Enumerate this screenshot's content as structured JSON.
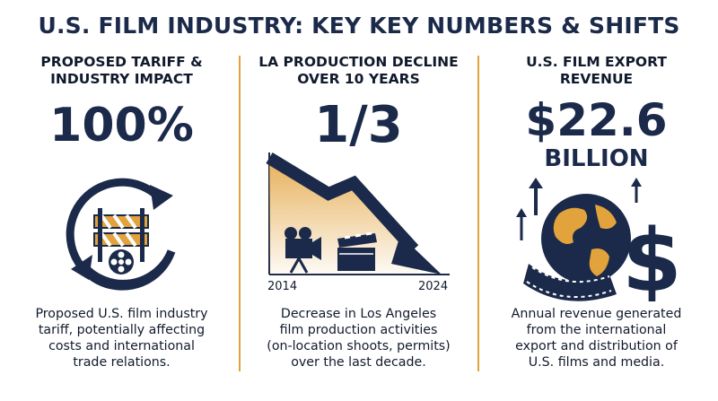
{
  "title": "U.S. FILM INDUSTRY: KEY KEY NUMBERS & SHIFTS",
  "colors": {
    "navy": "#1b2a4a",
    "gold": "#e2a23c",
    "white": "#ffffff"
  },
  "panels": [
    {
      "heading_line1": "PROPOSED TARIFF &",
      "heading_line2": "INDUSTRY IMPACT",
      "big_value": "100%",
      "icon": "barrier-film-reel-cycle-icon",
      "desc_lines": [
        "Proposed U.S. film industry",
        "tariff, potentially affecting",
        "costs and international",
        "trade relations."
      ]
    },
    {
      "heading_line1": "LA PRODUCTION DECLINE",
      "heading_line2": "OVER 10 YEARS",
      "big_value": "1/3",
      "icon": "declining-arrow-camera-clapperboard-icon",
      "year_start": "2014",
      "year_end": "2024",
      "desc_lines": [
        "Decrease in Los Angeles",
        "film production activities",
        "(on-location shoots, permits)",
        "over the last decade."
      ]
    },
    {
      "heading_line1": "U.S. FILM EXPORT",
      "heading_line2": "REVENUE",
      "big_value": "$22.6",
      "big_unit": "BILLION",
      "icon": "globe-filmstrip-dollar-icon",
      "desc_lines": [
        "Annual revenue generated",
        "from the international",
        "export and distribution of",
        "U.S. films and media."
      ]
    }
  ]
}
